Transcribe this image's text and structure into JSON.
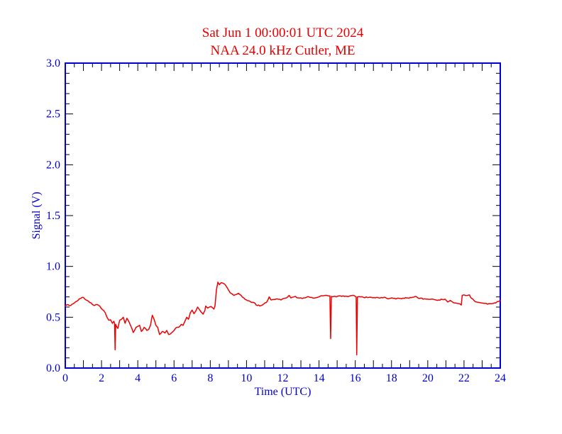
{
  "header": {
    "title_line1": "Sat Jun 1 00:00:01 UTC 2024",
    "title_line2": "NAA 24.0 kHz Cutler, ME",
    "title_color": "#e60000"
  },
  "chart_data": {
    "type": "line",
    "title": "Sat Jun 1 00:00:01 UTC 2024",
    "subtitle": "NAA 24.0 kHz Cutler, ME",
    "xlabel": "Time (UTC)",
    "ylabel": "Signal (V)",
    "xlim": [
      0,
      24
    ],
    "ylim": [
      0.0,
      3.0
    ],
    "x_tick_minor_step": 0.5,
    "x_tick_major_step": 1,
    "y_tick_minor_step": 0.1,
    "y_tick_major_step": 0.5,
    "grid": false,
    "legend": "none",
    "line_color": "#ee0000",
    "axis_color": "#0000dd",
    "tick_color": "#000000",
    "label_color": "#0000cc",
    "noise_v": 0.006,
    "x_tick_labels": [
      {
        "v": 0,
        "label": "0"
      },
      {
        "v": 2,
        "label": "2"
      },
      {
        "v": 4,
        "label": "4"
      },
      {
        "v": 6,
        "label": "6"
      },
      {
        "v": 8,
        "label": "8"
      },
      {
        "v": 10,
        "label": "10"
      },
      {
        "v": 12,
        "label": "12"
      },
      {
        "v": 14,
        "label": "14"
      },
      {
        "v": 16,
        "label": "16"
      },
      {
        "v": 18,
        "label": "18"
      },
      {
        "v": 20,
        "label": "20"
      },
      {
        "v": 22,
        "label": "22"
      },
      {
        "v": 24,
        "label": "24"
      }
    ],
    "y_tick_labels": [
      {
        "v": 0.0,
        "label": "0.0"
      },
      {
        "v": 0.5,
        "label": "0.5"
      },
      {
        "v": 1.0,
        "label": "1.0"
      },
      {
        "v": 1.5,
        "label": "1.5"
      },
      {
        "v": 2.0,
        "label": "2.0"
      },
      {
        "v": 2.5,
        "label": "2.5"
      },
      {
        "v": 3.0,
        "label": "3.0"
      }
    ],
    "series": [
      {
        "name": "NAA 24.0 kHz signal",
        "points": [
          [
            0.0,
            0.61
          ],
          [
            0.15,
            0.625
          ],
          [
            0.3,
            0.615
          ],
          [
            0.5,
            0.64
          ],
          [
            0.7,
            0.665
          ],
          [
            0.85,
            0.685
          ],
          [
            1.0,
            0.695
          ],
          [
            1.1,
            0.675
          ],
          [
            1.2,
            0.665
          ],
          [
            1.35,
            0.645
          ],
          [
            1.5,
            0.625
          ],
          [
            1.6,
            0.615
          ],
          [
            1.75,
            0.625
          ],
          [
            1.9,
            0.61
          ],
          [
            2.05,
            0.575
          ],
          [
            2.2,
            0.545
          ],
          [
            2.3,
            0.5
          ],
          [
            2.4,
            0.47
          ],
          [
            2.5,
            0.475
          ],
          [
            2.6,
            0.44
          ],
          [
            2.68,
            0.46
          ],
          [
            2.72,
            0.44
          ],
          [
            2.75,
            0.18
          ],
          [
            2.78,
            0.43
          ],
          [
            2.9,
            0.39
          ],
          [
            3.0,
            0.47
          ],
          [
            3.1,
            0.48
          ],
          [
            3.2,
            0.5
          ],
          [
            3.3,
            0.44
          ],
          [
            3.4,
            0.49
          ],
          [
            3.5,
            0.46
          ],
          [
            3.6,
            0.42
          ],
          [
            3.75,
            0.35
          ],
          [
            3.9,
            0.4
          ],
          [
            4.0,
            0.41
          ],
          [
            4.1,
            0.42
          ],
          [
            4.2,
            0.36
          ],
          [
            4.35,
            0.4
          ],
          [
            4.5,
            0.37
          ],
          [
            4.6,
            0.38
          ],
          [
            4.7,
            0.42
          ],
          [
            4.8,
            0.52
          ],
          [
            4.9,
            0.48
          ],
          [
            5.0,
            0.42
          ],
          [
            5.1,
            0.4
          ],
          [
            5.2,
            0.33
          ],
          [
            5.35,
            0.36
          ],
          [
            5.5,
            0.345
          ],
          [
            5.6,
            0.37
          ],
          [
            5.7,
            0.33
          ],
          [
            5.85,
            0.345
          ],
          [
            6.0,
            0.37
          ],
          [
            6.1,
            0.395
          ],
          [
            6.25,
            0.4
          ],
          [
            6.4,
            0.43
          ],
          [
            6.5,
            0.42
          ],
          [
            6.6,
            0.46
          ],
          [
            6.7,
            0.5
          ],
          [
            6.8,
            0.48
          ],
          [
            6.9,
            0.545
          ],
          [
            7.0,
            0.57
          ],
          [
            7.1,
            0.535
          ],
          [
            7.2,
            0.56
          ],
          [
            7.3,
            0.6
          ],
          [
            7.4,
            0.575
          ],
          [
            7.5,
            0.55
          ],
          [
            7.6,
            0.53
          ],
          [
            7.7,
            0.565
          ],
          [
            7.75,
            0.61
          ],
          [
            7.85,
            0.59
          ],
          [
            7.95,
            0.6
          ],
          [
            8.05,
            0.605
          ],
          [
            8.2,
            0.58
          ],
          [
            8.26,
            0.61
          ],
          [
            8.34,
            0.77
          ],
          [
            8.42,
            0.845
          ],
          [
            8.5,
            0.82
          ],
          [
            8.6,
            0.84
          ],
          [
            8.7,
            0.835
          ],
          [
            8.8,
            0.825
          ],
          [
            8.9,
            0.8
          ],
          [
            9.0,
            0.77
          ],
          [
            9.1,
            0.74
          ],
          [
            9.2,
            0.73
          ],
          [
            9.3,
            0.715
          ],
          [
            9.45,
            0.725
          ],
          [
            9.55,
            0.735
          ],
          [
            9.7,
            0.715
          ],
          [
            9.85,
            0.69
          ],
          [
            10.0,
            0.67
          ],
          [
            10.2,
            0.655
          ],
          [
            10.4,
            0.645
          ],
          [
            10.6,
            0.615
          ],
          [
            10.8,
            0.615
          ],
          [
            10.95,
            0.63
          ],
          [
            11.1,
            0.645
          ],
          [
            11.25,
            0.7
          ],
          [
            11.35,
            0.67
          ],
          [
            11.5,
            0.675
          ],
          [
            11.7,
            0.68
          ],
          [
            11.9,
            0.67
          ],
          [
            12.05,
            0.685
          ],
          [
            12.2,
            0.69
          ],
          [
            12.35,
            0.715
          ],
          [
            12.45,
            0.69
          ],
          [
            12.6,
            0.7
          ],
          [
            12.7,
            0.705
          ],
          [
            12.85,
            0.69
          ],
          [
            13.0,
            0.69
          ],
          [
            13.15,
            0.69
          ],
          [
            13.3,
            0.695
          ],
          [
            13.45,
            0.7
          ],
          [
            13.6,
            0.695
          ],
          [
            13.75,
            0.69
          ],
          [
            13.9,
            0.695
          ],
          [
            14.05,
            0.705
          ],
          [
            14.2,
            0.71
          ],
          [
            14.35,
            0.715
          ],
          [
            14.5,
            0.71
          ],
          [
            14.6,
            0.71
          ],
          [
            14.64,
            0.29
          ],
          [
            14.68,
            0.705
          ],
          [
            14.8,
            0.705
          ],
          [
            14.95,
            0.7
          ],
          [
            15.1,
            0.71
          ],
          [
            15.25,
            0.705
          ],
          [
            15.4,
            0.705
          ],
          [
            15.55,
            0.705
          ],
          [
            15.7,
            0.71
          ],
          [
            15.85,
            0.715
          ],
          [
            16.0,
            0.705
          ],
          [
            16.05,
            0.7
          ],
          [
            16.08,
            0.13
          ],
          [
            16.12,
            0.7
          ],
          [
            16.3,
            0.7
          ],
          [
            16.45,
            0.695
          ],
          [
            16.6,
            0.7
          ],
          [
            16.75,
            0.695
          ],
          [
            16.9,
            0.695
          ],
          [
            17.1,
            0.69
          ],
          [
            17.3,
            0.69
          ],
          [
            17.5,
            0.69
          ],
          [
            17.7,
            0.69
          ],
          [
            17.9,
            0.685
          ],
          [
            18.1,
            0.685
          ],
          [
            18.3,
            0.685
          ],
          [
            18.5,
            0.685
          ],
          [
            18.7,
            0.685
          ],
          [
            18.9,
            0.69
          ],
          [
            19.1,
            0.692
          ],
          [
            19.3,
            0.705
          ],
          [
            19.45,
            0.69
          ],
          [
            19.6,
            0.688
          ],
          [
            19.8,
            0.68
          ],
          [
            20.0,
            0.678
          ],
          [
            20.2,
            0.678
          ],
          [
            20.4,
            0.672
          ],
          [
            20.6,
            0.67
          ],
          [
            20.8,
            0.675
          ],
          [
            20.95,
            0.678
          ],
          [
            21.1,
            0.65
          ],
          [
            21.25,
            0.665
          ],
          [
            21.4,
            0.645
          ],
          [
            21.55,
            0.64
          ],
          [
            21.7,
            0.635
          ],
          [
            21.85,
            0.62
          ],
          [
            21.9,
            0.715
          ],
          [
            22.0,
            0.72
          ],
          [
            22.1,
            0.713
          ],
          [
            22.2,
            0.715
          ],
          [
            22.3,
            0.72
          ],
          [
            22.42,
            0.685
          ],
          [
            22.55,
            0.665
          ],
          [
            22.7,
            0.65
          ],
          [
            22.85,
            0.645
          ],
          [
            23.0,
            0.64
          ],
          [
            23.15,
            0.637
          ],
          [
            23.3,
            0.628
          ],
          [
            23.45,
            0.633
          ],
          [
            23.6,
            0.635
          ],
          [
            23.75,
            0.64
          ],
          [
            23.9,
            0.655
          ],
          [
            24.0,
            0.665
          ]
        ]
      }
    ]
  }
}
